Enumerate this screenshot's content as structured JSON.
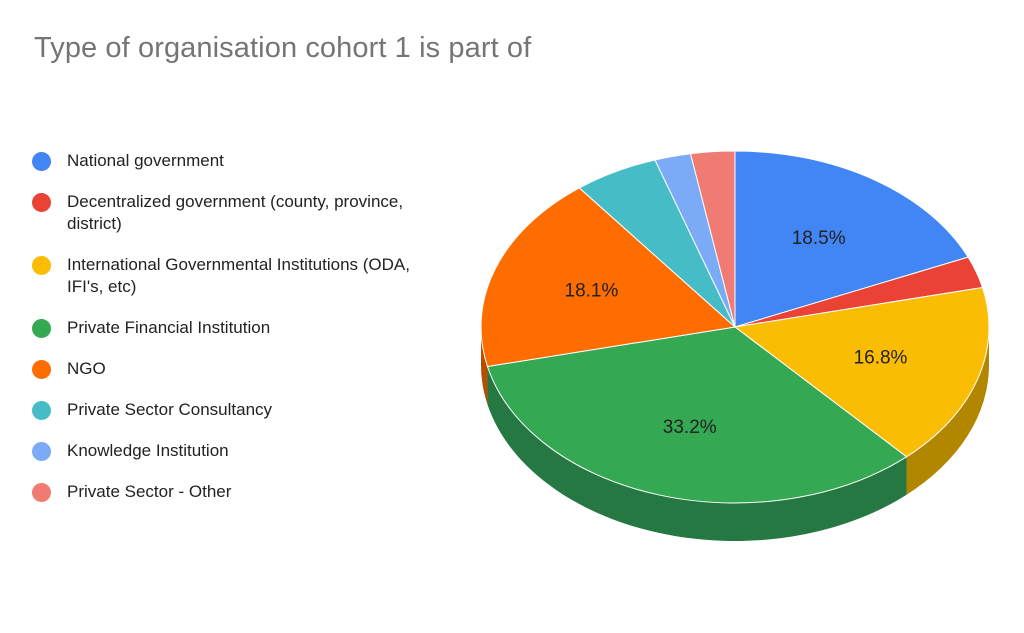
{
  "chart_data": {
    "type": "pie",
    "title": "Type of organisation cohort 1 is part of",
    "legend_position": "left",
    "categories": [
      "National government",
      "Decentralized government (county, province, district)",
      "International Governmental Institutions (ODA, IFI's, etc)",
      "Private Financial Institution",
      "NGO",
      "Private Sector Consultancy",
      "Knowledge Institution",
      "Private Sector - Other"
    ],
    "values": [
      18.5,
      2.9,
      16.8,
      33.2,
      18.1,
      5.4,
      2.3,
      2.8
    ],
    "data_labels": [
      "18.5%",
      "",
      "16.8%",
      "33.2%",
      "18.1%",
      "",
      "",
      ""
    ],
    "colors": [
      "#4285F4",
      "#EA4335",
      "#FBBC04",
      "#34A853",
      "#FF6D01",
      "#46BDC6",
      "#7BAAF7",
      "#F07B72"
    ],
    "side_colors": [
      "#2F5FAE",
      "#A6302F",
      "#B38600",
      "#257842",
      "#B54E01",
      "#32868C",
      "#587AB0",
      "#AB5751"
    ],
    "style": "3d"
  }
}
